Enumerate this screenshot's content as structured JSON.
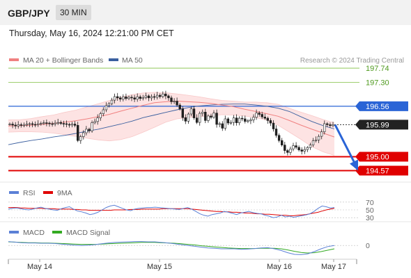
{
  "header": {
    "symbol": "GBP/JPY",
    "timeframe": "30 MIN"
  },
  "datetime": "Thursday, May 16, 2024 12:21:00 PM CET",
  "legend": {
    "ma20": "MA 20 + Bollinger Bands",
    "ma50": "MA 50",
    "credit": "Research © 2024 Trading Central"
  },
  "colors": {
    "ma20": "#f08080",
    "band": "#fde3e3",
    "ma50": "#3a5f9f",
    "price": "#1f1f1f",
    "resistance": "#2a64d6",
    "support": "#e00000",
    "target": "#7fbf3f",
    "arrow": "#2a64d6",
    "rsi": "#5b80d6",
    "rsi_ma": "#e00000",
    "macd": "#5b80d6",
    "macd_signal": "#33aa22"
  },
  "chart_data": [
    {
      "type": "line",
      "title": "GBP/JPY",
      "ylim": [
        194.3,
        198.3
      ],
      "x_ticks": [
        "May 14",
        "May 15",
        "May 16",
        "May 17"
      ],
      "close": [
        196.01,
        195.98,
        195.95,
        195.99,
        195.97,
        195.98,
        196.01,
        196.02,
        196.0,
        195.99,
        196.02,
        196.03,
        196.05,
        196.04,
        196.02,
        196.01,
        196.04,
        196.06,
        196.03,
        196.02,
        196.0,
        195.98,
        196.01,
        195.97,
        195.5,
        195.62,
        195.74,
        195.85,
        195.8,
        196.05,
        196.09,
        196.2,
        196.33,
        196.45,
        196.58,
        196.64,
        196.75,
        196.86,
        196.82,
        196.78,
        196.85,
        196.8,
        196.84,
        196.82,
        196.78,
        196.85,
        196.8,
        196.83,
        196.88,
        196.82,
        196.86,
        196.84,
        196.9,
        196.86,
        196.94,
        196.88,
        196.82,
        196.7,
        196.72,
        196.6,
        196.48,
        196.21,
        196.1,
        196.32,
        196.48,
        196.2,
        196.06,
        196.34,
        196.38,
        196.12,
        196.26,
        196.22,
        196.35,
        196.0,
        196.02,
        195.88,
        196.17,
        196.04,
        196.06,
        196.2,
        196.05,
        196.19,
        196.17,
        196.09,
        196.11,
        196.14,
        196.22,
        196.35,
        196.31,
        196.23,
        196.19,
        196.12,
        196.04,
        195.86,
        195.66,
        195.5,
        195.36,
        195.19,
        195.13,
        195.24,
        195.34,
        195.29,
        195.21,
        195.17,
        195.22,
        195.28,
        195.36,
        195.49,
        195.52,
        195.63,
        195.77,
        196.02,
        195.99,
        195.96,
        195.99
      ],
      "bollinger_upper": [
        196.14,
        196.14,
        196.18,
        196.24,
        196.29,
        196.37,
        196.44,
        196.54,
        196.64,
        196.74,
        196.84,
        196.92,
        196.97,
        196.99,
        196.98,
        196.94,
        196.9,
        196.85,
        196.79,
        196.74,
        196.72,
        196.69,
        196.69,
        196.67,
        196.62,
        196.5,
        196.38,
        196.27,
        196.15,
        196.05
      ],
      "bollinger_lower": [
        195.76,
        195.77,
        195.77,
        195.76,
        195.73,
        195.68,
        195.63,
        195.57,
        195.52,
        195.49,
        195.53,
        195.62,
        195.76,
        195.91,
        196.07,
        196.17,
        196.21,
        196.24,
        196.26,
        196.3,
        196.29,
        196.26,
        196.21,
        196.13,
        195.97,
        195.76,
        195.54,
        195.31,
        195.15,
        195.04
      ],
      "ma20": [
        195.95,
        195.96,
        195.97,
        196.0,
        196.03,
        196.07,
        196.11,
        196.17,
        196.24,
        196.31,
        196.41,
        196.5,
        196.59,
        196.67,
        196.7,
        196.72,
        196.7,
        196.68,
        196.65,
        196.6,
        196.55,
        196.47,
        196.4,
        196.33,
        196.25,
        196.12,
        195.98,
        195.85,
        195.73,
        195.61
      ],
      "ma50": [
        195.37,
        195.44,
        195.5,
        195.55,
        195.61,
        195.66,
        195.72,
        195.79,
        195.85,
        195.93,
        196.01,
        196.1,
        196.21,
        196.29,
        196.37,
        196.45,
        196.52,
        196.57,
        196.6,
        196.62,
        196.63,
        196.63,
        196.6,
        196.56,
        196.5,
        196.4,
        196.24,
        196.09,
        195.96,
        195.86
      ],
      "levels": [
        {
          "value": 197.74,
          "label": "197.74",
          "kind": "target"
        },
        {
          "value": 197.3,
          "label": "197.30",
          "kind": "target"
        },
        {
          "value": 196.56,
          "label": "196.56",
          "kind": "resistance"
        },
        {
          "value": 195.99,
          "label": "195.99",
          "kind": "last"
        },
        {
          "value": 195.0,
          "label": "195.00",
          "kind": "support"
        },
        {
          "value": 194.57,
          "label": "194.57",
          "kind": "support"
        }
      ],
      "projection": [
        195.99,
        194.57
      ]
    },
    {
      "type": "line",
      "legend": [
        "RSI",
        "9MA"
      ],
      "ylim": [
        25,
        75
      ],
      "ticks": [
        "70",
        "50",
        "30"
      ],
      "rsi": [
        52,
        54,
        55,
        53,
        51,
        50,
        52,
        55,
        57,
        54,
        52,
        50,
        49,
        53,
        56,
        58,
        52,
        47,
        45,
        42,
        38,
        40,
        44,
        50,
        56,
        60,
        62,
        58,
        54,
        50,
        48,
        52,
        54,
        55,
        56,
        56,
        57,
        56,
        55,
        54,
        53,
        52,
        51,
        54,
        56,
        52,
        46,
        40,
        36,
        34,
        38,
        40,
        42,
        46,
        44,
        41,
        38,
        42,
        44,
        46,
        43,
        41,
        40,
        36,
        34,
        30,
        32,
        36,
        32,
        34,
        31,
        33,
        35,
        37,
        40,
        46,
        54,
        60,
        58,
        55,
        56
      ],
      "rsi_ma": [
        56,
        56,
        56,
        55,
        55,
        54,
        54,
        54,
        54,
        53,
        53,
        53,
        52,
        52,
        52,
        52,
        51,
        51,
        50,
        50,
        49,
        49,
        49,
        49,
        49,
        49,
        50,
        50,
        50,
        50,
        51,
        51,
        51,
        52,
        52,
        52,
        52,
        52,
        53,
        53,
        53,
        53,
        53,
        53,
        53,
        52,
        51,
        50,
        49,
        48,
        47,
        46,
        46,
        45,
        45,
        44,
        44,
        43,
        42,
        42,
        41,
        40,
        40,
        39,
        39,
        38,
        37,
        36,
        36,
        35,
        35,
        36,
        37,
        38,
        40,
        42,
        44,
        47,
        50,
        52,
        54
      ]
    },
    {
      "type": "line",
      "legend": [
        "MACD",
        "MACD Signal"
      ],
      "ylim": [
        -0.42,
        0.28
      ],
      "ticks": [
        "0"
      ],
      "macd": [
        0.14,
        0.12,
        0.1,
        0.09,
        0.09,
        0.08,
        0.08,
        0.07,
        0.05,
        0.03,
        0.01,
        0.0,
        0.01,
        0.03,
        0.06,
        0.09,
        0.11,
        0.12,
        0.13,
        0.14,
        0.14,
        0.13,
        0.13,
        0.11,
        0.09,
        0.06,
        0.03,
        0.0,
        -0.03,
        -0.06,
        -0.09,
        -0.1,
        -0.12,
        -0.12,
        -0.12,
        -0.14,
        -0.13,
        -0.11,
        -0.09,
        -0.08,
        -0.12,
        -0.18,
        -0.26,
        -0.32,
        -0.33,
        -0.3,
        -0.22,
        -0.12,
        -0.04,
        0.0
      ],
      "macd_signal": [
        0.13,
        0.12,
        0.11,
        0.1,
        0.1,
        0.09,
        0.09,
        0.08,
        0.07,
        0.06,
        0.05,
        0.04,
        0.04,
        0.04,
        0.05,
        0.06,
        0.07,
        0.08,
        0.09,
        0.1,
        0.11,
        0.11,
        0.11,
        0.1,
        0.09,
        0.08,
        0.06,
        0.04,
        0.02,
        -0.01,
        -0.03,
        -0.05,
        -0.07,
        -0.09,
        -0.1,
        -0.11,
        -0.11,
        -0.11,
        -0.1,
        -0.1,
        -0.1,
        -0.12,
        -0.16,
        -0.21,
        -0.25,
        -0.27,
        -0.26,
        -0.22,
        -0.17,
        -0.12
      ]
    }
  ]
}
